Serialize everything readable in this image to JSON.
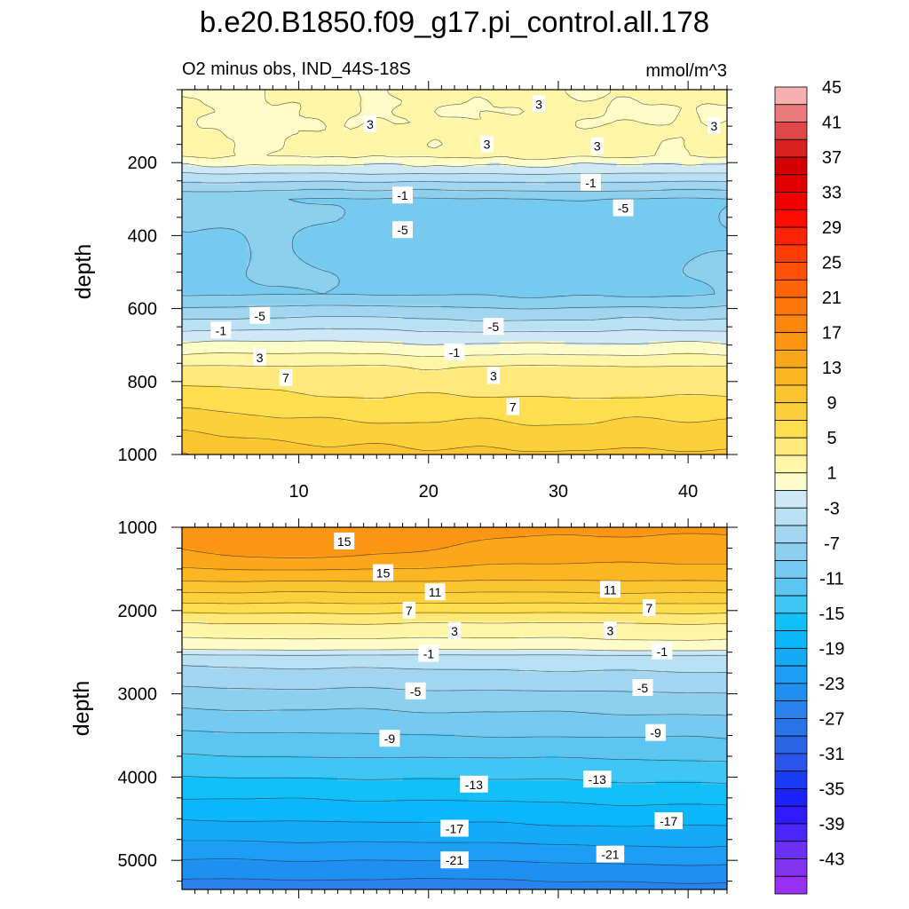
{
  "chart_data": {
    "type": "contour",
    "title": "b.e20.B1850.f09_g17.pi_control.all.178",
    "subtitle_left": "O2 minus obs, IND_44S-18S",
    "units": "mmol/m^3",
    "xlim": [
      1,
      43
    ],
    "x_ticks": [
      10,
      20,
      30,
      40
    ],
    "x_tick_labels": [
      "10",
      "20",
      "30",
      "40"
    ],
    "ylabel": "depth",
    "panels": [
      {
        "name": "upper",
        "ylim": [
          0,
          1000
        ],
        "y_ticks": [
          200,
          400,
          600,
          800,
          1000
        ],
        "y_tick_labels": [
          "200",
          "400",
          "600",
          "800",
          "1000"
        ],
        "contour_labels": [
          {
            "x": 15.5,
            "y": 95,
            "text": "3"
          },
          {
            "x": 24.5,
            "y": 150,
            "text": "3"
          },
          {
            "x": 28.5,
            "y": 40,
            "text": "3"
          },
          {
            "x": 33,
            "y": 155,
            "text": "3"
          },
          {
            "x": 42,
            "y": 100,
            "text": "3"
          },
          {
            "x": 18,
            "y": 290,
            "text": "-1"
          },
          {
            "x": 32.5,
            "y": 255,
            "text": "-1"
          },
          {
            "x": 18,
            "y": 385,
            "text": "-5"
          },
          {
            "x": 35,
            "y": 325,
            "text": "-5"
          },
          {
            "x": 7,
            "y": 620,
            "text": "-5"
          },
          {
            "x": 25,
            "y": 650,
            "text": "-5"
          },
          {
            "x": 4,
            "y": 660,
            "text": "-1"
          },
          {
            "x": 22,
            "y": 720,
            "text": "-1"
          },
          {
            "x": 7,
            "y": 735,
            "text": "3"
          },
          {
            "x": 25,
            "y": 785,
            "text": "3"
          },
          {
            "x": 9,
            "y": 790,
            "text": "7"
          },
          {
            "x": 26.5,
            "y": 870,
            "text": "7"
          }
        ]
      },
      {
        "name": "lower",
        "ylim": [
          1000,
          5350
        ],
        "y_ticks": [
          1000,
          2000,
          3000,
          4000,
          5000
        ],
        "y_tick_labels": [
          "1000",
          "2000",
          "3000",
          "4000",
          "5000"
        ],
        "contour_labels": [
          {
            "x": 13.5,
            "y": 1170,
            "text": "15"
          },
          {
            "x": 16.5,
            "y": 1550,
            "text": "15"
          },
          {
            "x": 20.5,
            "y": 1780,
            "text": "11"
          },
          {
            "x": 34,
            "y": 1750,
            "text": "11"
          },
          {
            "x": 18.5,
            "y": 2000,
            "text": "7"
          },
          {
            "x": 37,
            "y": 1970,
            "text": "7"
          },
          {
            "x": 22,
            "y": 2250,
            "text": "3"
          },
          {
            "x": 34,
            "y": 2240,
            "text": "3"
          },
          {
            "x": 20,
            "y": 2520,
            "text": "-1"
          },
          {
            "x": 38,
            "y": 2490,
            "text": "-1"
          },
          {
            "x": 19,
            "y": 2970,
            "text": "-5"
          },
          {
            "x": 36.5,
            "y": 2930,
            "text": "-5"
          },
          {
            "x": 17,
            "y": 3540,
            "text": "-9"
          },
          {
            "x": 37.5,
            "y": 3470,
            "text": "-9"
          },
          {
            "x": 23.5,
            "y": 4090,
            "text": "-13"
          },
          {
            "x": 33,
            "y": 4030,
            "text": "-13"
          },
          {
            "x": 22,
            "y": 4620,
            "text": "-17"
          },
          {
            "x": 38.5,
            "y": 4530,
            "text": "-17"
          },
          {
            "x": 22,
            "y": 5000,
            "text": "-21"
          },
          {
            "x": 34,
            "y": 4930,
            "text": "-21"
          }
        ]
      }
    ],
    "colorbar": {
      "levels": [
        -45,
        -43,
        -41,
        -39,
        -37,
        -35,
        -33,
        -31,
        -29,
        -27,
        -25,
        -23,
        -21,
        -19,
        -17,
        -15,
        -13,
        -11,
        -9,
        -7,
        -5,
        -3,
        -1,
        1,
        3,
        5,
        7,
        9,
        11,
        13,
        15,
        17,
        19,
        21,
        23,
        25,
        27,
        29,
        31,
        33,
        35,
        37,
        39,
        41,
        43,
        45
      ],
      "tick_labels": [
        "-43",
        "-39",
        "-35",
        "-31",
        "-27",
        "-23",
        "-19",
        "-15",
        "-11",
        "-7",
        "-3",
        "1",
        "5",
        "9",
        "13",
        "17",
        "21",
        "25",
        "29",
        "33",
        "37",
        "41",
        "45"
      ],
      "colors": [
        "#9a31f2",
        "#8233f0",
        "#6a30f5",
        "#4b26fa",
        "#2f1bfb",
        "#1c22fb",
        "#1a3cf5",
        "#2a55ea",
        "#2c64e6",
        "#2a74ea",
        "#2a83ec",
        "#1f90f0",
        "#1c9ef5",
        "#14aaf8",
        "#0cb6fb",
        "#12c0f9",
        "#3ec6f4",
        "#5cc6f2",
        "#76caf0",
        "#8ccfee",
        "#a2d6f0",
        "#b9e1f4",
        "#cee8f6",
        "#fefdc9",
        "#fef6a6",
        "#fee97a",
        "#fedd4e",
        "#fcd03b",
        "#fcc42e",
        "#fcb622",
        "#fca61a",
        "#fc9612",
        "#fc860e",
        "#fd760a",
        "#fd6408",
        "#fe5006",
        "#fe3c04",
        "#fe2403",
        "#fe0c02",
        "#f10000",
        "#e00000",
        "#d20001",
        "#d82020",
        "#e04848",
        "#ec7a7a",
        "#f7b0b0"
      ]
    }
  }
}
